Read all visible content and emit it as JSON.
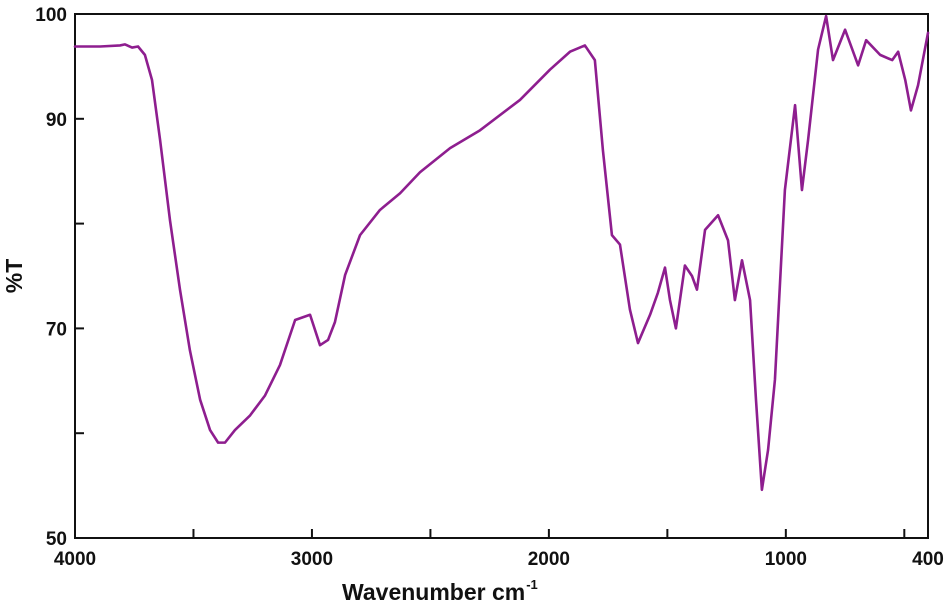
{
  "chart_data": {
    "type": "line",
    "x_label": "Wavenumber cm",
    "x_label_superscript": "-1",
    "y_label": "%T",
    "color": "#8e1e8f",
    "x": [
      4000,
      3894,
      3810,
      3789,
      3759,
      3734,
      3705,
      3675,
      3641,
      3599,
      3557,
      3515,
      3472,
      3430,
      3396,
      3367,
      3325,
      3261,
      3198,
      3135,
      3071,
      3008,
      2966,
      2932,
      2903,
      2860,
      2797,
      2713,
      2628,
      2544,
      2417,
      2291,
      2122,
      1995,
      1911,
      1848,
      1806,
      1772,
      1734,
      1700,
      1658,
      1624,
      1573,
      1540,
      1510,
      1489,
      1464,
      1426,
      1396,
      1375,
      1341,
      1286,
      1244,
      1215,
      1185,
      1151,
      1126,
      1101,
      1075,
      1046,
      1004,
      961,
      932,
      906,
      864,
      830,
      801,
      750,
      695,
      661,
      602,
      551,
      526,
      496,
      472,
      442,
      400
    ],
    "values": [
      96.9,
      96.9,
      97.0,
      97.1,
      96.8,
      96.9,
      96.1,
      93.7,
      88.0,
      80.3,
      73.7,
      67.9,
      63.2,
      60.3,
      59.1,
      59.1,
      60.3,
      61.7,
      63.6,
      66.5,
      70.8,
      71.3,
      68.4,
      68.9,
      70.6,
      75.1,
      78.9,
      81.3,
      82.9,
      84.9,
      87.2,
      88.9,
      91.8,
      94.7,
      96.4,
      97.0,
      95.6,
      87.0,
      78.9,
      78.0,
      71.8,
      68.6,
      71.3,
      73.4,
      75.8,
      72.7,
      70.0,
      76.0,
      75.0,
      73.7,
      79.4,
      80.8,
      78.4,
      72.7,
      76.5,
      72.7,
      63.2,
      54.6,
      58.4,
      65.1,
      83.2,
      91.3,
      83.2,
      88.0,
      96.6,
      99.8,
      95.6,
      98.5,
      95.1,
      97.5,
      96.1,
      95.6,
      96.4,
      93.7,
      90.8,
      93.2,
      98.2
    ],
    "xlim": [
      4000,
      400
    ],
    "ylim": [
      50,
      100
    ],
    "xticks": [
      4000,
      3000,
      2000,
      1000,
      400
    ],
    "xminorticks": [
      3500,
      2500,
      1500,
      500
    ],
    "yticks": [
      50,
      70,
      90,
      100
    ],
    "yminorticks": [
      60,
      80
    ]
  }
}
